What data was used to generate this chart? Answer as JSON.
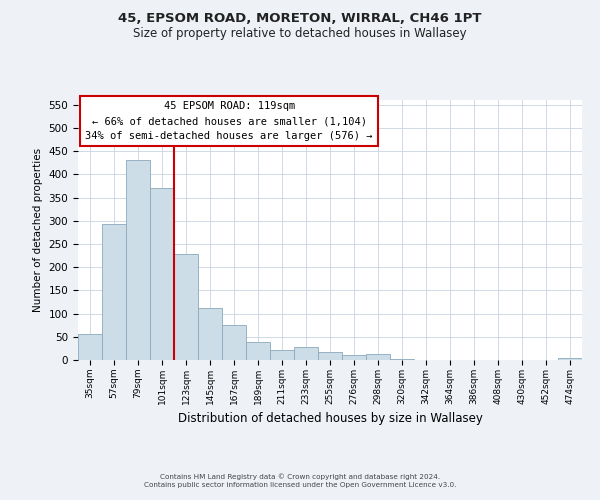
{
  "title": "45, EPSOM ROAD, MORETON, WIRRAL, CH46 1PT",
  "subtitle": "Size of property relative to detached houses in Wallasey",
  "xlabel": "Distribution of detached houses by size in Wallasey",
  "ylabel": "Number of detached properties",
  "bar_labels": [
    "35sqm",
    "57sqm",
    "79sqm",
    "101sqm",
    "123sqm",
    "145sqm",
    "167sqm",
    "189sqm",
    "211sqm",
    "233sqm",
    "255sqm",
    "276sqm",
    "298sqm",
    "320sqm",
    "342sqm",
    "364sqm",
    "386sqm",
    "408sqm",
    "430sqm",
    "452sqm",
    "474sqm"
  ],
  "bar_values": [
    57,
    293,
    430,
    370,
    228,
    113,
    76,
    38,
    22,
    29,
    17,
    10,
    12,
    3,
    0,
    0,
    0,
    0,
    0,
    0,
    5
  ],
  "bar_color": "#ccdde8",
  "bar_edge_color": "#8aaabb",
  "vline_color": "#cc0000",
  "ylim": [
    0,
    560
  ],
  "yticks": [
    0,
    50,
    100,
    150,
    200,
    250,
    300,
    350,
    400,
    450,
    500,
    550
  ],
  "annotation_title": "45 EPSOM ROAD: 119sqm",
  "annotation_line1": "← 66% of detached houses are smaller (1,104)",
  "annotation_line2": "34% of semi-detached houses are larger (576) →",
  "annotation_box_color": "#cc0000",
  "footer_line1": "Contains HM Land Registry data © Crown copyright and database right 2024.",
  "footer_line2": "Contains public sector information licensed under the Open Government Licence v3.0.",
  "background_color": "#eef2f7",
  "plot_bg_color": "#ffffff",
  "grid_color": "#c8d4e0"
}
